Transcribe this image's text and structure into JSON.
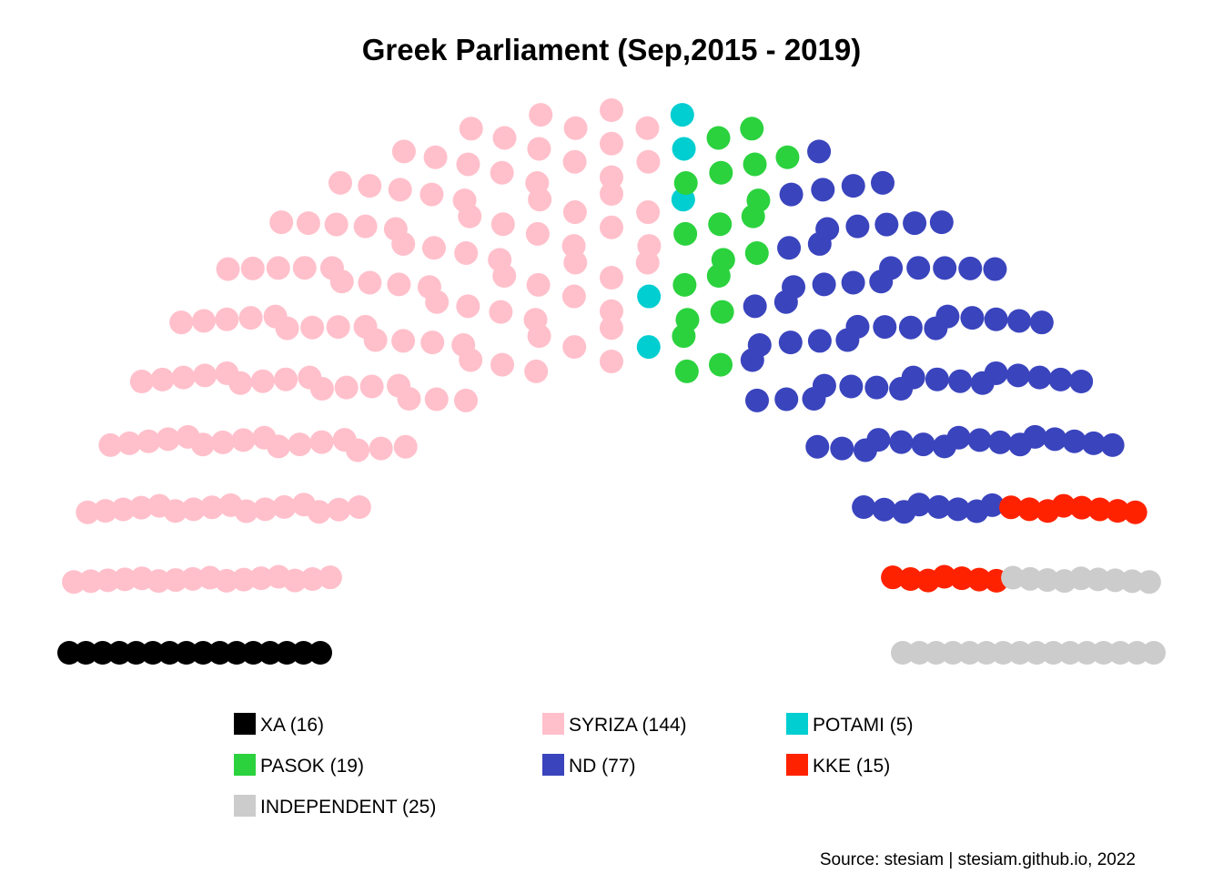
{
  "chart_data": {
    "type": "parliament",
    "title": "Greek Parliament (Sep,2015 - 2019)",
    "total_seats": 301,
    "parties": [
      {
        "name": "XA",
        "seats": 16,
        "color": "#000000",
        "legend_label": "XA (16)"
      },
      {
        "name": "SYRIZA",
        "seats": 144,
        "color": "#FFC0CB",
        "legend_label": "SYRIZA (144)"
      },
      {
        "name": "POTAMI",
        "seats": 5,
        "color": "#00CED1",
        "legend_label": "POTAMI (5)"
      },
      {
        "name": "PASOK",
        "seats": 19,
        "color": "#2BD23E",
        "legend_label": "PASOK (19)"
      },
      {
        "name": "ND",
        "seats": 77,
        "color": "#3A44BD",
        "legend_label": "ND (77)"
      },
      {
        "name": "KKE",
        "seats": 15,
        "color": "#FF2200",
        "legend_label": "KKE (15)"
      },
      {
        "name": "INDEPENDENT",
        "seats": 25,
        "color": "#CCCCCC",
        "legend_label": "INDEPENDENT (25)"
      }
    ],
    "legend_position": "bottom",
    "caption": "Source: stesiam | stesiam.github.io, 2022"
  }
}
